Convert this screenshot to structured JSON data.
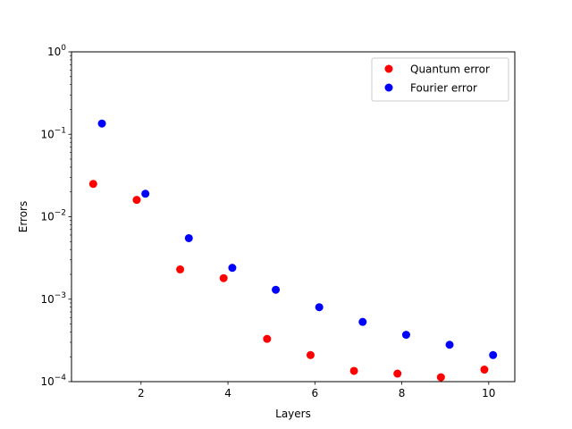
{
  "chart_data": {
    "type": "scatter",
    "xlabel": "Layers",
    "ylabel": "Errors",
    "xlim": [
      0.4,
      10.6
    ],
    "ylim": [
      0.0001,
      1
    ],
    "yscale": "log",
    "x_ticks": [
      2,
      4,
      6,
      8,
      10
    ],
    "y_ticks": [
      {
        "value": 0.0001,
        "base": "10",
        "exp": "−4"
      },
      {
        "value": 0.001,
        "base": "10",
        "exp": "−3"
      },
      {
        "value": 0.01,
        "base": "10",
        "exp": "−2"
      },
      {
        "value": 0.1,
        "base": "10",
        "exp": "−1"
      },
      {
        "value": 1,
        "base": "10",
        "exp": "0"
      }
    ],
    "legend_position": "top-right",
    "grid": false,
    "series": [
      {
        "name": "Quantum error",
        "color": "#ff0000",
        "points": [
          {
            "x": 0.9,
            "y": 0.025
          },
          {
            "x": 1.9,
            "y": 0.016
          },
          {
            "x": 2.9,
            "y": 0.0023
          },
          {
            "x": 3.9,
            "y": 0.0018
          },
          {
            "x": 4.9,
            "y": 0.00033
          },
          {
            "x": 5.9,
            "y": 0.00021
          },
          {
            "x": 6.9,
            "y": 0.000135
          },
          {
            "x": 7.9,
            "y": 0.000125
          },
          {
            "x": 8.9,
            "y": 0.000113
          },
          {
            "x": 9.9,
            "y": 0.00014
          }
        ]
      },
      {
        "name": "Fourier error",
        "color": "#0000ff",
        "points": [
          {
            "x": 1.1,
            "y": 0.135
          },
          {
            "x": 2.1,
            "y": 0.019
          },
          {
            "x": 3.1,
            "y": 0.0055
          },
          {
            "x": 4.1,
            "y": 0.0024
          },
          {
            "x": 5.1,
            "y": 0.0013
          },
          {
            "x": 6.1,
            "y": 0.0008
          },
          {
            "x": 7.1,
            "y": 0.00053
          },
          {
            "x": 8.1,
            "y": 0.00037
          },
          {
            "x": 9.1,
            "y": 0.00028
          },
          {
            "x": 10.1,
            "y": 0.00021
          }
        ]
      }
    ]
  }
}
